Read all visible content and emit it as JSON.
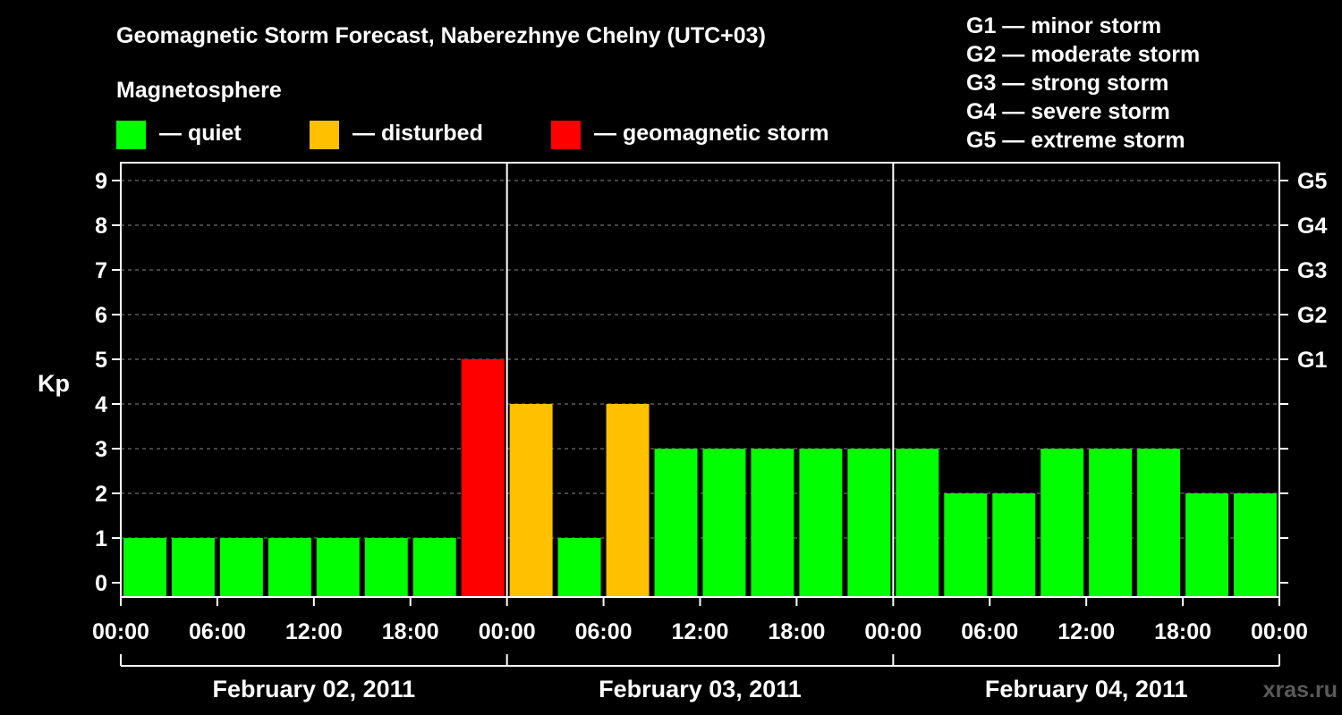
{
  "chart_data": {
    "type": "bar",
    "title": "Geomagnetic Storm Forecast, Naberezhnye Chelny (UTC+03)",
    "ylabel": "Kp",
    "ylim": [
      0,
      9
    ],
    "y_ticks": [
      "0",
      "1",
      "2",
      "3",
      "4",
      "5",
      "6",
      "7",
      "8",
      "9"
    ],
    "right_ticks": [
      {
        "kp": 5,
        "label": "G1"
      },
      {
        "kp": 6,
        "label": "G2"
      },
      {
        "kp": 7,
        "label": "G3"
      },
      {
        "kp": 8,
        "label": "G4"
      },
      {
        "kp": 9,
        "label": "G5"
      }
    ],
    "x_tick_labels": [
      "00:00",
      "06:00",
      "12:00",
      "18:00",
      "00:00",
      "06:00",
      "12:00",
      "18:00",
      "00:00",
      "06:00",
      "12:00",
      "18:00",
      "00:00"
    ],
    "days": [
      "February 02, 2011",
      "February 03, 2011",
      "February 04, 2011"
    ],
    "interval_hours": 3,
    "values": [
      1,
      1,
      1,
      1,
      1,
      1,
      1,
      5,
      4,
      1,
      4,
      3,
      3,
      3,
      3,
      3,
      3,
      2,
      2,
      3,
      3,
      3,
      2,
      2
    ],
    "legend_heading": "Magnetosphere",
    "legend": [
      {
        "label": "— quiet",
        "color": "#00ff00"
      },
      {
        "label": "— disturbed",
        "color": "#ffc000"
      },
      {
        "label": "— geomagnetic storm",
        "color": "#ff0000"
      }
    ],
    "scale_legend": [
      "G1 — minor storm",
      "G2 — moderate storm",
      "G3 — strong storm",
      "G4 — severe storm",
      "G5 — extreme storm"
    ],
    "watermark": "xras.ru",
    "grid": true,
    "colors": {
      "quiet": "#00ff00",
      "disturbed": "#ffc000",
      "storm": "#ff0000",
      "background": "#000000",
      "axis": "#ffffff"
    }
  }
}
